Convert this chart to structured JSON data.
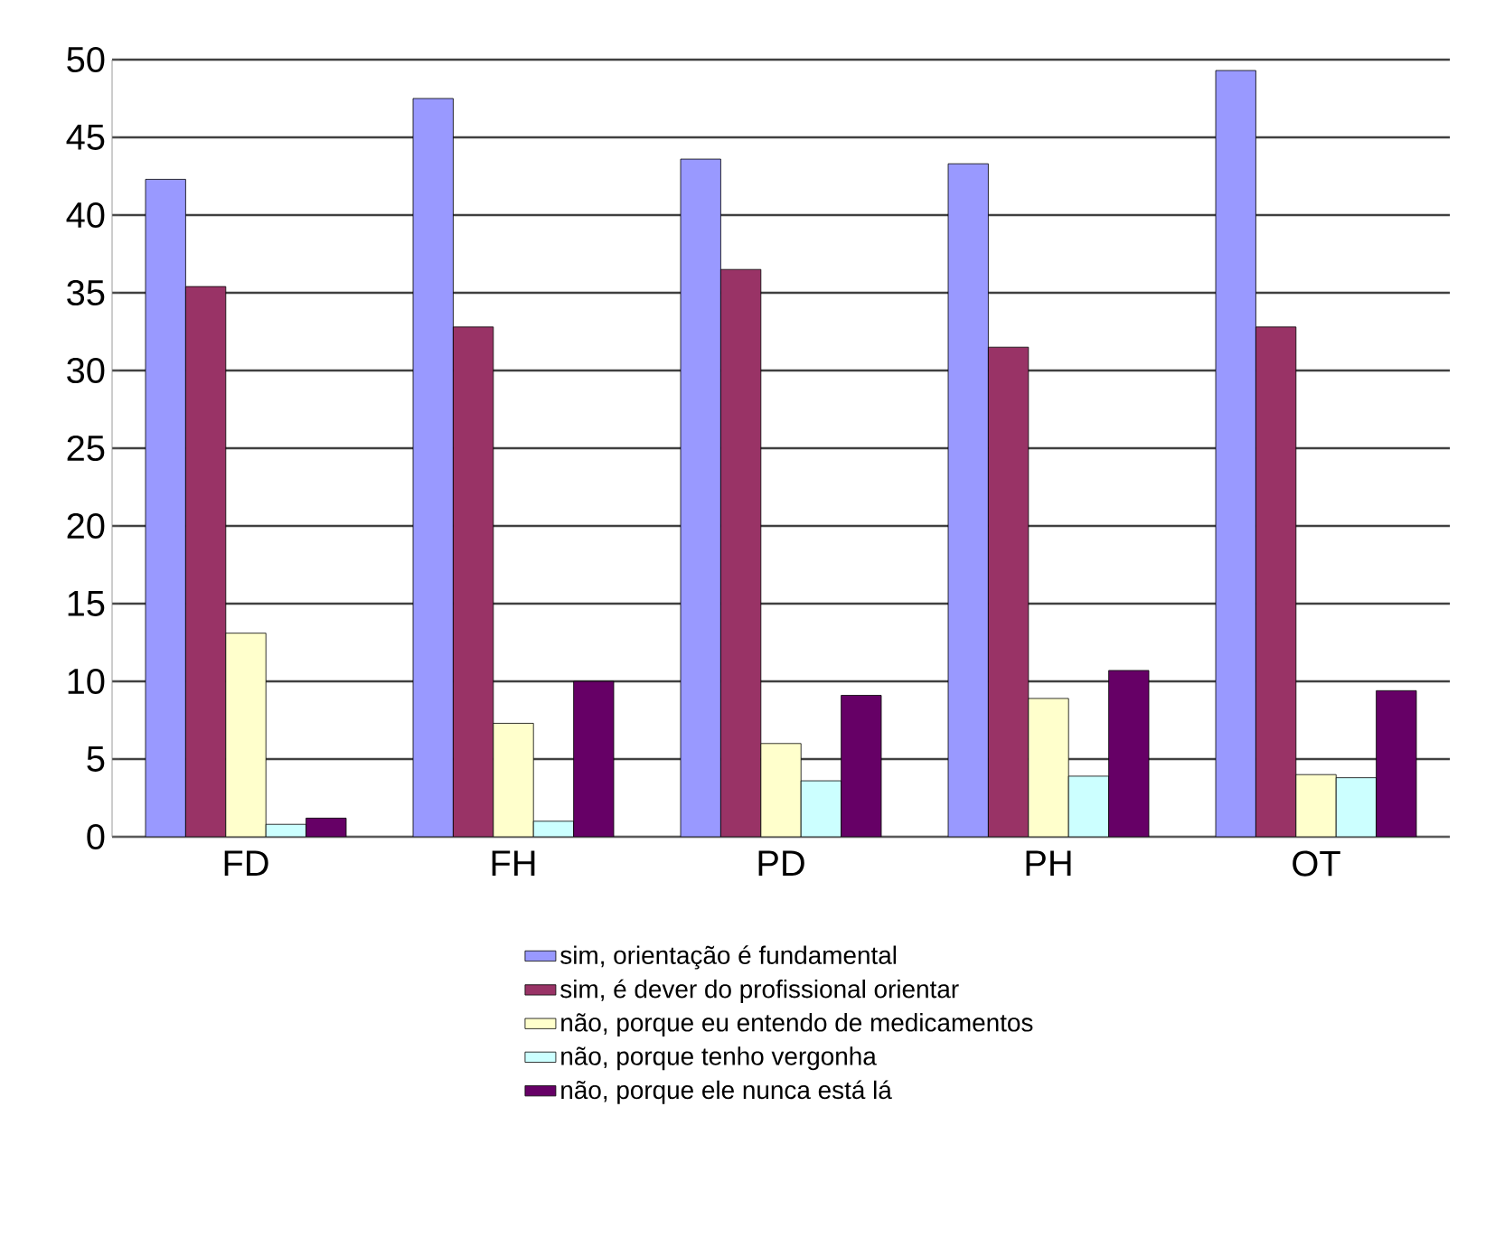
{
  "chart_data": {
    "type": "bar",
    "categories": [
      "FD",
      "FH",
      "PD",
      "PH",
      "OT"
    ],
    "series": [
      {
        "name": "sim, orientação é fundamental",
        "color": "#9999ff",
        "values": [
          42.3,
          47.5,
          43.6,
          43.3,
          49.3
        ]
      },
      {
        "name": "sim, é dever do profissional orientar",
        "color": "#993366",
        "values": [
          35.4,
          32.8,
          36.5,
          31.5,
          32.8
        ]
      },
      {
        "name": "não, porque eu entendo de medicamentos",
        "color": "#ffffcc",
        "values": [
          13.1,
          7.3,
          6.0,
          8.9,
          4.0
        ]
      },
      {
        "name": "não, porque tenho vergonha",
        "color": "#ccffff",
        "values": [
          0.8,
          1.0,
          3.6,
          3.9,
          3.8
        ]
      },
      {
        "name": "não, porque ele nunca está lá",
        "color": "#660066",
        "values": [
          1.2,
          10.0,
          9.1,
          10.7,
          9.4
        ]
      }
    ],
    "ylim": [
      0,
      50
    ],
    "yticks": [
      0,
      5,
      10,
      15,
      20,
      25,
      30,
      35,
      40,
      45,
      50
    ],
    "grid": "y",
    "legend": "bottom"
  }
}
